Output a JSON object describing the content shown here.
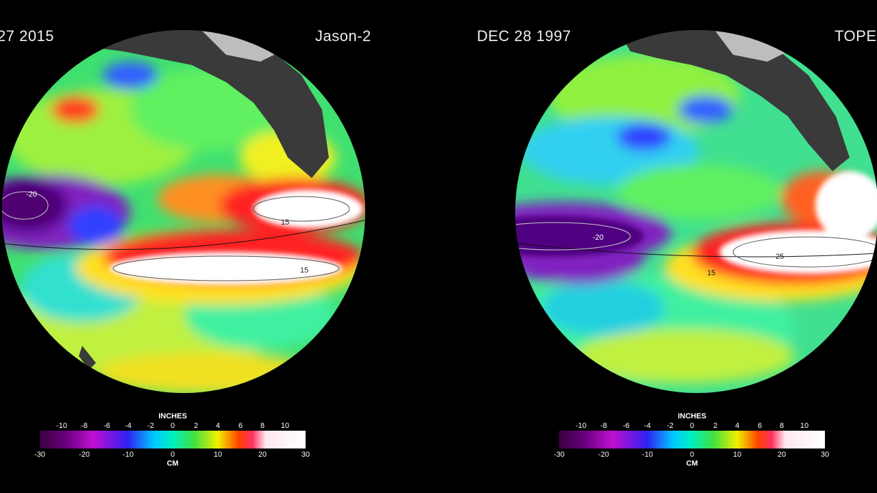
{
  "left": {
    "date": "27  2015",
    "mission": "Jason-2",
    "colorbar": {
      "unit_top": "INCHES",
      "unit_bottom": "CM",
      "inches_ticks": [
        "-10",
        "-8",
        "-6",
        "-4",
        "-2",
        "0",
        "2",
        "4",
        "6",
        "8",
        "10"
      ],
      "cm_ticks": [
        "-30",
        "-20",
        "-10",
        "0",
        "10",
        "20",
        "30"
      ]
    },
    "contours": [
      "-20",
      "15",
      "15"
    ]
  },
  "right": {
    "date": "DEC 28  1997",
    "mission": "TOPE",
    "colorbar": {
      "unit_top": "INCHES",
      "unit_bottom": "CM",
      "inches_ticks": [
        "-10",
        "-8",
        "-6",
        "-4",
        "-2",
        "0",
        "2",
        "4",
        "6",
        "8",
        "10"
      ],
      "cm_ticks": [
        "-30",
        "-20",
        "-10",
        "0",
        "10",
        "20",
        "30"
      ]
    },
    "contours": [
      "15",
      "25",
      "-20"
    ]
  }
}
